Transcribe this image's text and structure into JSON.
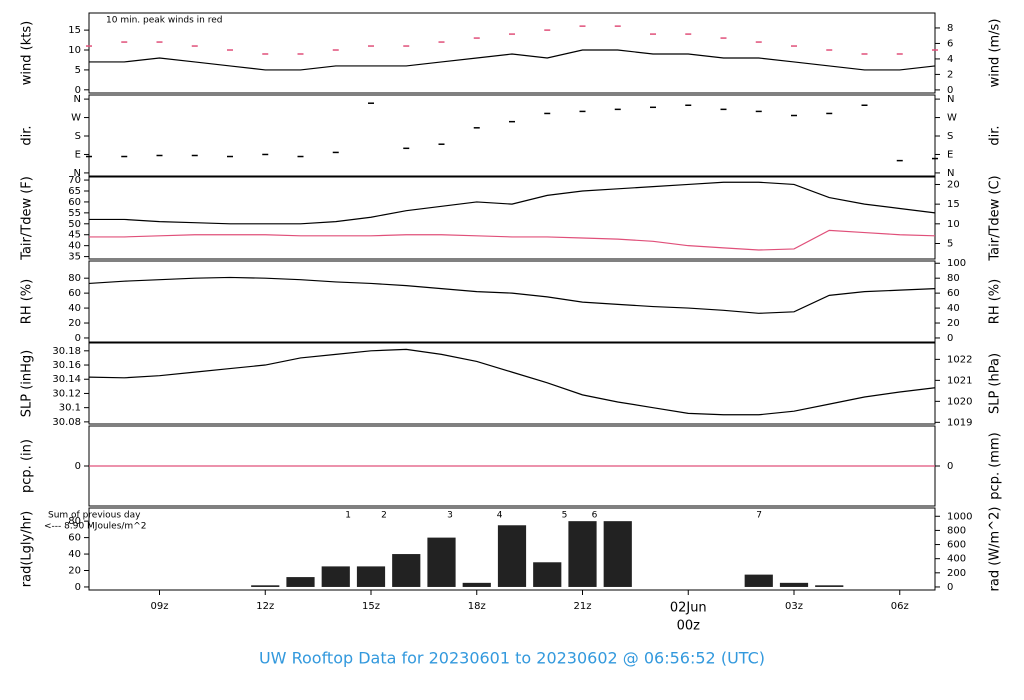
{
  "title": "UW Rooftop Data for 20230601  to  20230602 @ 06:56:52  (UTC)",
  "chart_data": [
    {
      "type": "line",
      "ylabel": "wind (kts)",
      "y2label": "wind (m/s)",
      "annotations": [
        {
          "text": "10 min. peak winds in red",
          "color": "#e0507a"
        }
      ],
      "x": [
        7,
        8,
        9,
        10,
        11,
        12,
        13,
        14,
        15,
        16,
        17,
        18,
        19,
        20,
        21,
        22,
        23,
        24,
        25,
        26,
        27,
        28,
        29,
        30,
        31
      ],
      "series": [
        {
          "kind": "line",
          "color": "#000000",
          "values": [
            7,
            7,
            8,
            7,
            6,
            5,
            5,
            6,
            6,
            6,
            7,
            8,
            9,
            8,
            10,
            10,
            9,
            9,
            8,
            8,
            7,
            6,
            5,
            5,
            6
          ]
        },
        {
          "kind": "dash",
          "color": "#e0507a",
          "values": [
            11,
            12,
            12,
            11,
            10,
            9,
            9,
            10,
            11,
            11,
            12,
            13,
            14,
            15,
            16,
            16,
            14,
            14,
            13,
            12,
            11,
            10,
            9,
            9,
            10
          ]
        }
      ],
      "ylim": [
        -0.8,
        19.3
      ],
      "yticks": [
        0,
        5,
        10,
        15
      ],
      "y2lim": [
        -0.4,
        9.93
      ],
      "y2ticks": [
        0,
        2,
        4,
        6,
        8
      ]
    },
    {
      "type": "scatter",
      "ylabel": "dir.",
      "x": [
        7,
        8,
        9,
        10,
        11,
        12,
        13,
        14,
        15,
        16,
        17,
        18,
        19,
        20,
        21,
        22,
        23,
        24,
        25,
        26,
        27,
        28,
        29,
        30,
        31
      ],
      "series": [
        {
          "kind": "dash",
          "color": "#000000",
          "values": [
            80,
            80,
            85,
            85,
            80,
            90,
            80,
            100,
            340,
            120,
            140,
            220,
            250,
            290,
            300,
            310,
            320,
            330,
            310,
            300,
            280,
            290,
            330,
            60,
            70
          ]
        }
      ],
      "ylim": [
        -15,
        380
      ],
      "yticks": [
        {
          "value": 0,
          "label": "N"
        },
        {
          "value": 90,
          "label": "E"
        },
        {
          "value": 180,
          "label": "S"
        },
        {
          "value": 270,
          "label": "W"
        },
        {
          "value": 360,
          "label": "N"
        }
      ]
    },
    {
      "type": "line",
      "ylabel": "Tair/Tdew (F)",
      "y2label": "Tair/Tdew (C)",
      "x": [
        7,
        8,
        9,
        10,
        11,
        12,
        13,
        14,
        15,
        16,
        17,
        18,
        19,
        20,
        21,
        22,
        23,
        24,
        25,
        26,
        27,
        28,
        29,
        30,
        31
      ],
      "series": [
        {
          "kind": "line",
          "color": "#000000",
          "values": [
            52,
            52,
            51,
            50.5,
            50,
            50,
            50,
            51,
            53,
            56,
            58,
            60,
            59,
            63,
            65,
            66,
            67,
            68,
            69,
            69,
            68,
            62,
            59,
            57,
            55
          ]
        },
        {
          "kind": "line",
          "color": "#e0507a",
          "values": [
            44,
            44,
            44.5,
            45,
            45,
            45,
            44.5,
            44.5,
            44.5,
            45,
            45,
            44.5,
            44,
            44,
            43.5,
            43,
            42,
            40,
            39,
            38,
            38.5,
            47,
            46,
            45,
            44.5
          ]
        }
      ],
      "ylim": [
        33.9,
        71.4
      ],
      "yticks": [
        35,
        40,
        45,
        50,
        55,
        60,
        65,
        70
      ],
      "y2lim": [
        1.06,
        21.9
      ],
      "y2ticks": [
        5,
        10,
        15,
        20
      ]
    },
    {
      "type": "line",
      "ylabel": "RH (%)",
      "y2label": "RH (%)",
      "x": [
        7,
        8,
        9,
        10,
        11,
        12,
        13,
        14,
        15,
        16,
        17,
        18,
        19,
        20,
        21,
        22,
        23,
        24,
        25,
        26,
        27,
        28,
        29,
        30,
        31
      ],
      "series": [
        {
          "kind": "line",
          "color": "#000000",
          "values": [
            73,
            76,
            78,
            80,
            81,
            80,
            78,
            75,
            73,
            70,
            66,
            62,
            60,
            55,
            48,
            45,
            42,
            40,
            37,
            33,
            35,
            57,
            62,
            64,
            66
          ]
        }
      ],
      "ylim": [
        -5.4,
        103
      ],
      "yticks": [
        0,
        20,
        40,
        60,
        80
      ],
      "y2lim": [
        -5.4,
        103
      ],
      "y2ticks": [
        0,
        20,
        40,
        60,
        80,
        100
      ]
    },
    {
      "type": "line",
      "ylabel": "SLP (inHg)",
      "y2label": "SLP (hPa)",
      "x": [
        7,
        8,
        9,
        10,
        11,
        12,
        13,
        14,
        15,
        16,
        17,
        18,
        19,
        20,
        21,
        22,
        23,
        24,
        25,
        26,
        27,
        28,
        29,
        30,
        31
      ],
      "series": [
        {
          "kind": "line",
          "color": "#000000",
          "values": [
            30.143,
            30.142,
            30.145,
            30.15,
            30.155,
            30.16,
            30.17,
            30.175,
            30.18,
            30.182,
            30.175,
            30.165,
            30.15,
            30.135,
            30.118,
            30.108,
            30.1,
            30.092,
            30.09,
            30.09,
            30.095,
            30.105,
            30.115,
            30.122,
            30.128
          ]
        }
      ],
      "ylim": [
        30.077,
        30.191
      ],
      "yticks": [
        30.08,
        30.1,
        30.12,
        30.14,
        30.16,
        30.18
      ],
      "y2lim": [
        1018.92,
        1022.78
      ],
      "y2ticks": [
        1019,
        1020,
        1021,
        1022
      ]
    },
    {
      "type": "line",
      "ylabel": "pcp. (in)",
      "y2label": "pcp. (mm)",
      "x": [
        7,
        8,
        9,
        10,
        11,
        12,
        13,
        14,
        15,
        16,
        17,
        18,
        19,
        20,
        21,
        22,
        23,
        24,
        25,
        26,
        27,
        28,
        29,
        30,
        31
      ],
      "series": [
        {
          "kind": "line",
          "color": "#e0507a",
          "values": [
            0,
            0,
            0,
            0,
            0,
            0,
            0,
            0,
            0,
            0,
            0,
            0,
            0,
            0,
            0,
            0,
            0,
            0,
            0,
            0,
            0,
            0,
            0,
            0,
            0
          ]
        }
      ],
      "ylim": [
        -1,
        1
      ],
      "yticks": [
        0
      ],
      "y2lim": [
        -1,
        1
      ],
      "y2ticks": [
        0
      ]
    },
    {
      "type": "bar",
      "ylabel": "rad(Lgly/hr)",
      "y2label": "rad (W/m^2)",
      "annotations": [
        {
          "text": "Sum of previous day",
          "color": "#9933cc"
        },
        {
          "text": "<--- 8.90 MJoules/m^2",
          "color": "#9933cc"
        }
      ],
      "markers": [
        {
          "x": 14.35,
          "label": "1"
        },
        {
          "x": 15.37,
          "label": "2"
        },
        {
          "x": 17.24,
          "label": "3"
        },
        {
          "x": 18.65,
          "label": "4"
        },
        {
          "x": 20.49,
          "label": "5"
        },
        {
          "x": 21.34,
          "label": "6"
        },
        {
          "x": 26.01,
          "label": "7"
        }
      ],
      "marker_color": "#9933cc",
      "x": [
        7,
        8,
        9,
        10,
        11,
        12,
        13,
        14,
        15,
        16,
        17,
        18,
        19,
        20,
        21,
        22,
        23,
        24,
        25,
        26,
        27,
        28,
        29,
        30,
        31
      ],
      "series": [
        {
          "kind": "bar",
          "color": "#222222",
          "values": [
            0,
            0,
            0,
            0,
            0,
            2,
            12,
            25,
            25,
            40,
            60,
            5,
            75,
            30,
            80,
            80,
            0,
            0,
            0,
            15,
            5,
            2,
            0,
            0,
            0
          ]
        }
      ],
      "ylim": [
        -3.7,
        96
      ],
      "yticks": [
        0,
        20,
        40,
        60,
        80
      ],
      "y2lim": [
        -43,
        1117
      ],
      "y2ticks": [
        0,
        200,
        400,
        600,
        800,
        1000
      ],
      "xlim": [
        7,
        31
      ],
      "xticks": [
        {
          "value": 9,
          "label": "09z"
        },
        {
          "value": 12,
          "label": "12z"
        },
        {
          "value": 15,
          "label": "15z"
        },
        {
          "value": 18,
          "label": "18z"
        },
        {
          "value": 21,
          "label": "21z"
        },
        {
          "value": 24,
          "label": "00z"
        },
        {
          "value": 27,
          "label": "03z"
        },
        {
          "value": 30,
          "label": "06z"
        }
      ],
      "date_label": {
        "text": "02Jun",
        "x": 24,
        "color": "#d6336c"
      }
    }
  ]
}
